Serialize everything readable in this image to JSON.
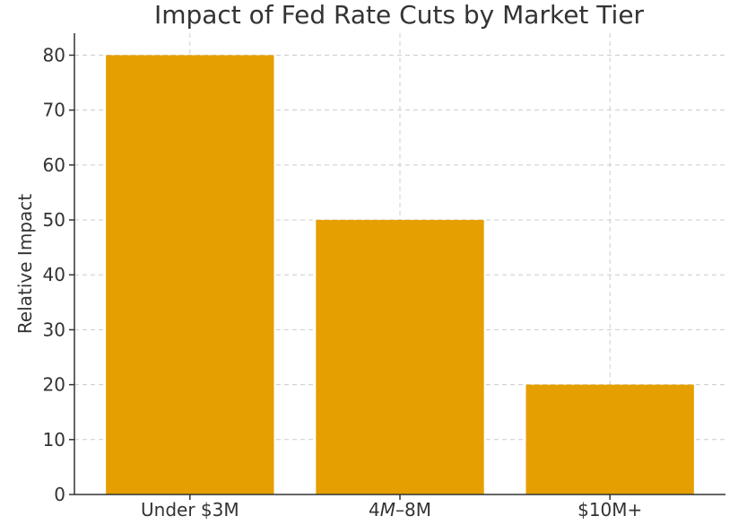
{
  "chart_data": {
    "type": "bar",
    "title": "Impact of Fed Rate Cuts by Market Tier",
    "xlabel": "",
    "ylabel": "Relative Impact",
    "categories": [
      "Under $3M",
      "4M–8M",
      "$10M+"
    ],
    "category_parts": [
      [
        {
          "text": "Under $3M",
          "italic": false
        }
      ],
      [
        {
          "text": "4",
          "italic": false
        },
        {
          "text": "M",
          "italic": true
        },
        {
          "text": "–8M",
          "italic": false
        }
      ],
      [
        {
          "text": "$10M+",
          "italic": false
        }
      ]
    ],
    "values": [
      80,
      50,
      20
    ],
    "ylim": [
      0,
      84
    ],
    "yticks": [
      0,
      10,
      20,
      30,
      40,
      50,
      60,
      70,
      80
    ],
    "grid": true,
    "bar_color": "#E69F00"
  }
}
